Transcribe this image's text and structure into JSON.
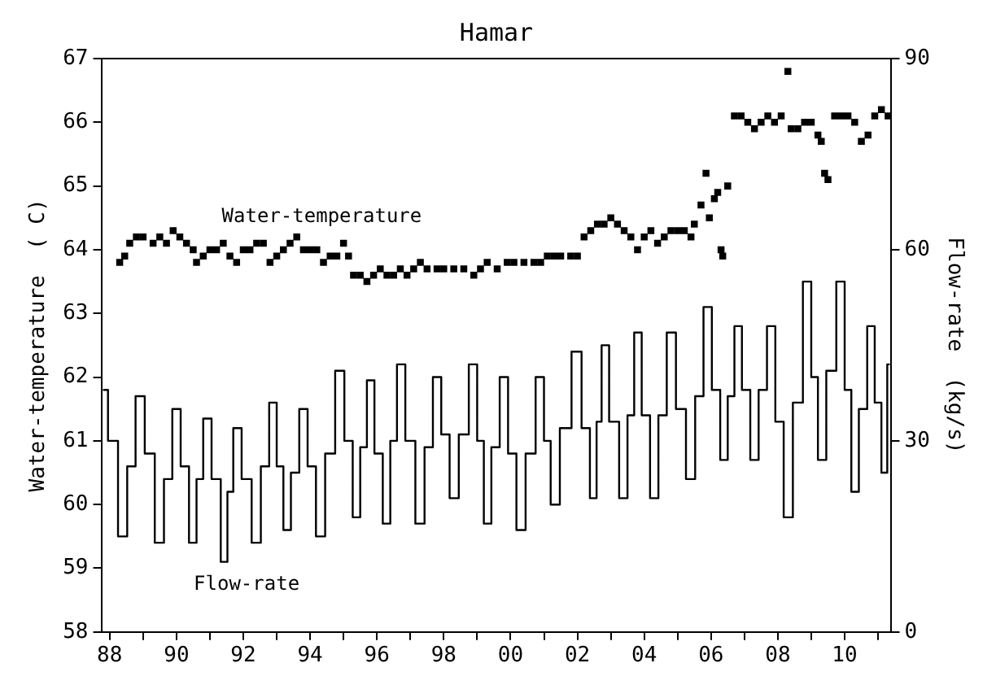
{
  "chart_data": {
    "type": "line",
    "title": "Hamar",
    "ylabel": "Water-temperature  ( C)",
    "y2label": "Flow-rate  (kg/s)",
    "xlim": [
      1987.75,
      2011.4
    ],
    "xticks": [
      {
        "value": 1988,
        "label": "88"
      },
      {
        "value": 1989,
        "label": null
      },
      {
        "value": 1990,
        "label": "90"
      },
      {
        "value": 1991,
        "label": null
      },
      {
        "value": 1992,
        "label": "92"
      },
      {
        "value": 1993,
        "label": null
      },
      {
        "value": 1994,
        "label": "94"
      },
      {
        "value": 1995,
        "label": null
      },
      {
        "value": 1996,
        "label": "96"
      },
      {
        "value": 1997,
        "label": null
      },
      {
        "value": 1998,
        "label": "98"
      },
      {
        "value": 1999,
        "label": null
      },
      {
        "value": 2000,
        "label": "00"
      },
      {
        "value": 2001,
        "label": null
      },
      {
        "value": 2002,
        "label": "02"
      },
      {
        "value": 2003,
        "label": null
      },
      {
        "value": 2004,
        "label": "04"
      },
      {
        "value": 2005,
        "label": null
      },
      {
        "value": 2006,
        "label": "06"
      },
      {
        "value": 2007,
        "label": null
      },
      {
        "value": 2008,
        "label": "08"
      },
      {
        "value": 2009,
        "label": null
      },
      {
        "value": 2010,
        "label": "10"
      },
      {
        "value": 2011,
        "label": null
      }
    ],
    "ylim": [
      58,
      67
    ],
    "yticks": [
      58,
      59,
      60,
      61,
      62,
      63,
      64,
      65,
      66,
      67
    ],
    "y2lim": [
      0,
      90
    ],
    "y2ticks": [
      0,
      30,
      60,
      90
    ],
    "legend": false,
    "series": [
      {
        "name": "Water-temperature",
        "type": "scatter",
        "marker": "square",
        "color": "#000000",
        "x": [
          1988.3,
          1988.45,
          1988.6,
          1988.8,
          1989.0,
          1989.3,
          1989.5,
          1989.7,
          1989.9,
          1990.1,
          1990.3,
          1990.5,
          1990.6,
          1990.8,
          1991.0,
          1991.2,
          1991.4,
          1991.6,
          1991.8,
          1992.0,
          1992.2,
          1992.4,
          1992.6,
          1992.8,
          1993.0,
          1993.2,
          1993.4,
          1993.6,
          1993.8,
          1994.0,
          1994.2,
          1994.4,
          1994.6,
          1994.8,
          1995.0,
          1995.15,
          1995.3,
          1995.5,
          1995.7,
          1995.9,
          1996.1,
          1996.3,
          1996.5,
          1996.7,
          1996.9,
          1997.1,
          1997.3,
          1997.5,
          1997.8,
          1998.0,
          1998.3,
          1998.6,
          1998.9,
          1999.1,
          1999.3,
          1999.6,
          1999.9,
          2000.1,
          2000.4,
          2000.7,
          2000.9,
          2001.1,
          2001.3,
          2001.5,
          2001.8,
          2002.0,
          2002.2,
          2002.4,
          2002.6,
          2002.8,
          2003.0,
          2003.2,
          2003.4,
          2003.6,
          2003.8,
          2004.0,
          2004.2,
          2004.4,
          2004.6,
          2004.8,
          2005.0,
          2005.2,
          2005.4,
          2005.5,
          2005.7,
          2005.85,
          2005.95,
          2006.1,
          2006.2,
          2006.3,
          2006.35,
          2006.5,
          2006.7,
          2006.9,
          2007.1,
          2007.3,
          2007.5,
          2007.7,
          2007.9,
          2008.1,
          2008.3,
          2008.4,
          2008.6,
          2008.8,
          2009.0,
          2009.2,
          2009.3,
          2009.4,
          2009.5,
          2009.7,
          2009.9,
          2010.1,
          2010.3,
          2010.5,
          2010.7,
          2010.9,
          2011.1,
          2011.3
        ],
        "values": [
          63.8,
          63.9,
          64.1,
          64.2,
          64.2,
          64.1,
          64.2,
          64.1,
          64.3,
          64.2,
          64.1,
          64.0,
          63.8,
          63.9,
          64.0,
          64.0,
          64.1,
          63.9,
          63.8,
          64.0,
          64.0,
          64.1,
          64.1,
          63.8,
          63.9,
          64.0,
          64.1,
          64.2,
          64.0,
          64.0,
          64.0,
          63.8,
          63.9,
          63.9,
          64.1,
          63.9,
          63.6,
          63.6,
          63.5,
          63.6,
          63.7,
          63.6,
          63.6,
          63.7,
          63.6,
          63.7,
          63.8,
          63.7,
          63.7,
          63.7,
          63.7,
          63.7,
          63.6,
          63.7,
          63.8,
          63.7,
          63.8,
          63.8,
          63.8,
          63.8,
          63.8,
          63.9,
          63.9,
          63.9,
          63.9,
          63.9,
          64.2,
          64.3,
          64.4,
          64.4,
          64.5,
          64.4,
          64.3,
          64.2,
          64.0,
          64.2,
          64.3,
          64.1,
          64.2,
          64.3,
          64.3,
          64.3,
          64.2,
          64.4,
          64.7,
          65.2,
          64.5,
          64.8,
          64.9,
          64.0,
          63.9,
          65.0,
          66.1,
          66.1,
          66.0,
          65.9,
          66.0,
          66.1,
          66.0,
          66.1,
          66.8,
          65.9,
          65.9,
          66.0,
          66.0,
          65.8,
          65.7,
          65.2,
          65.1,
          66.1,
          66.1,
          66.1,
          66.0,
          65.7,
          65.8,
          66.1,
          66.2,
          66.1
        ]
      },
      {
        "name": "Flow-rate",
        "type": "step",
        "axis": "y2",
        "marker": "none",
        "line_style": "solid",
        "color": "#000000",
        "x": [
          1987.8,
          1988.1,
          1988.4,
          1988.65,
          1988.9,
          1989.2,
          1989.5,
          1989.75,
          1990.0,
          1990.25,
          1990.5,
          1990.7,
          1990.9,
          1991.2,
          1991.45,
          1991.6,
          1991.8,
          1992.1,
          1992.4,
          1992.65,
          1992.9,
          1993.1,
          1993.3,
          1993.55,
          1993.8,
          1994.05,
          1994.3,
          1994.6,
          1994.9,
          1995.15,
          1995.4,
          1995.6,
          1995.8,
          1996.05,
          1996.3,
          1996.5,
          1996.7,
          1997.0,
          1997.3,
          1997.55,
          1997.8,
          1998.05,
          1998.3,
          1998.6,
          1998.9,
          1999.1,
          1999.3,
          1999.55,
          1999.8,
          2000.05,
          2000.3,
          2000.6,
          2000.9,
          2001.1,
          2001.3,
          2001.65,
          2002.0,
          2002.25,
          2002.5,
          2002.65,
          2002.8,
          2003.1,
          2003.4,
          2003.6,
          2003.8,
          2004.05,
          2004.3,
          2004.55,
          2004.8,
          2005.1,
          2005.4,
          2005.65,
          2005.9,
          2006.15,
          2006.4,
          2006.6,
          2006.8,
          2007.05,
          2007.3,
          2007.55,
          2007.8,
          2008.05,
          2008.3,
          2008.6,
          2008.9,
          2009.1,
          2009.3,
          2009.6,
          2009.9,
          2010.1,
          2010.3,
          2010.55,
          2010.8,
          2011.0,
          2011.2,
          2011.35
        ],
        "values": [
          38,
          30,
          15,
          26,
          37,
          28,
          14,
          24,
          35,
          26,
          14,
          24,
          33.5,
          24,
          11,
          22,
          32,
          24,
          14,
          26,
          36,
          26,
          16,
          25,
          35,
          26,
          15,
          28,
          41,
          30,
          18,
          29,
          39.5,
          28,
          17,
          30,
          42,
          30,
          17,
          29,
          40,
          31,
          21,
          31,
          42,
          30,
          17,
          29,
          40,
          28,
          16,
          28,
          40,
          30,
          20,
          32,
          44,
          32,
          21,
          33,
          45,
          33,
          21,
          34,
          47,
          34,
          21,
          34,
          47,
          35,
          24,
          37,
          51,
          38,
          27,
          37,
          48,
          38,
          27,
          38,
          48,
          33,
          18,
          36,
          55,
          40,
          27,
          41,
          55,
          38,
          22,
          35,
          48,
          36,
          25,
          42
        ]
      }
    ]
  }
}
